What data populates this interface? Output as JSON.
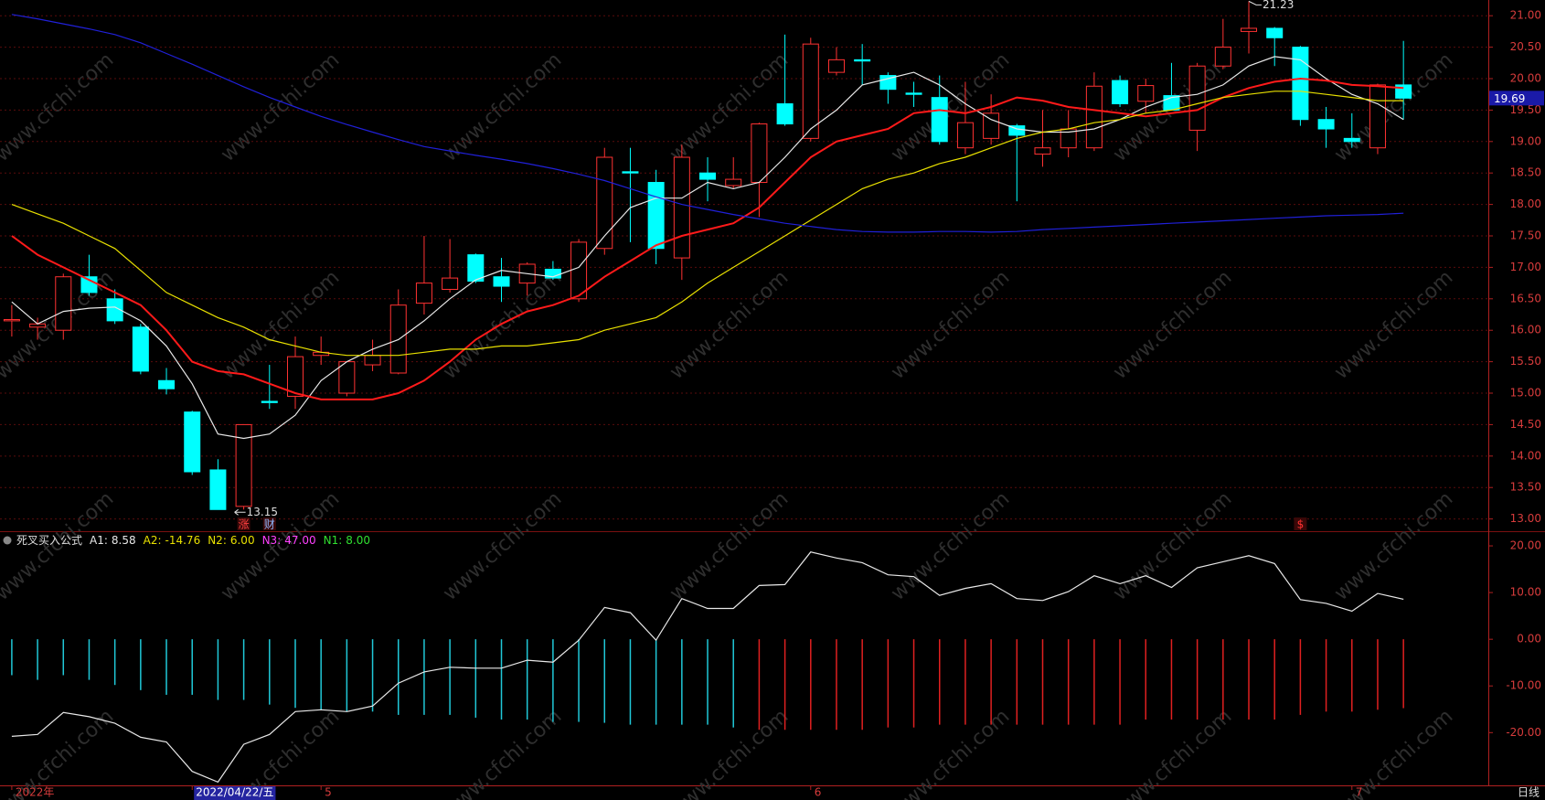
{
  "watermark": "www.cfchi.com",
  "footer": {
    "period": "日线"
  },
  "chart_data": [
    {
      "type": "candlestick",
      "up_color": "#ff3232",
      "down_color": "#00ffff",
      "ylim": [
        12.82,
        21.25
      ],
      "yticks": [
        {
          "value": 13,
          "label": "13.00"
        },
        {
          "value": 13.5,
          "label": "13.50"
        },
        {
          "value": 14,
          "label": "14.00"
        },
        {
          "value": 14.5,
          "label": "14.50"
        },
        {
          "value": 15,
          "label": "15.00"
        },
        {
          "value": 15.5,
          "label": "15.50"
        },
        {
          "value": 16,
          "label": "16.00"
        },
        {
          "value": 16.5,
          "label": "16.50"
        },
        {
          "value": 17,
          "label": "17.00"
        },
        {
          "value": 17.5,
          "label": "17.50"
        },
        {
          "value": 18,
          "label": "18.00"
        },
        {
          "value": 18.5,
          "label": "18.50"
        },
        {
          "value": 19,
          "label": "19.00"
        },
        {
          "value": 19.5,
          "label": "19.50"
        },
        {
          "value": 20,
          "label": "20.00"
        },
        {
          "value": 20.5,
          "label": "20.50"
        },
        {
          "value": 21,
          "label": "21.00"
        }
      ],
      "grid": true,
      "categories": [
        "2022年",
        null,
        null,
        null,
        null,
        null,
        null,
        "2022/04/22/五",
        null,
        null,
        null,
        null,
        "5",
        null,
        null,
        null,
        null,
        null,
        null,
        null,
        null,
        null,
        null,
        null,
        null,
        null,
        null,
        null,
        null,
        null,
        null,
        "6",
        null,
        null,
        null,
        null,
        null,
        null,
        null,
        null,
        null,
        null,
        null,
        null,
        null,
        null,
        null,
        null,
        null,
        null,
        null,
        null,
        "7",
        null,
        null
      ],
      "open": [
        16.15,
        16.05,
        16.0,
        16.85,
        16.5,
        16.05,
        15.2,
        14.7,
        13.78,
        13.2,
        14.87,
        14.95,
        15.6,
        15.0,
        15.45,
        15.32,
        16.43,
        16.65,
        17.2,
        16.85,
        16.75,
        16.97,
        16.5,
        17.3,
        18.52,
        18.35,
        17.15,
        18.5,
        18.3,
        18.35,
        19.6,
        19.05,
        20.1,
        20.3,
        20.05,
        19.77,
        19.7,
        18.9,
        19.05,
        19.25,
        18.8,
        18.9,
        18.9,
        19.97,
        19.64,
        19.73,
        19.18,
        20.2,
        20.75,
        20.8,
        20.5,
        19.35,
        19.05,
        18.9,
        19.9
      ],
      "high": [
        16.4,
        16.2,
        16.9,
        17.2,
        16.65,
        16.1,
        15.4,
        14.72,
        13.95,
        14.5,
        15.45,
        15.9,
        15.9,
        15.5,
        15.85,
        16.65,
        17.5,
        17.45,
        17.22,
        17.15,
        17.08,
        17.1,
        17.45,
        18.9,
        18.9,
        18.55,
        18.95,
        18.75,
        18.75,
        19.3,
        20.7,
        20.65,
        20.5,
        20.55,
        20.1,
        19.95,
        20.05,
        19.95,
        19.75,
        19.28,
        19.5,
        19.5,
        20.1,
        20.05,
        20.0,
        20.25,
        20.25,
        20.95,
        21.23,
        20.82,
        20.52,
        19.55,
        19.45,
        19.92,
        20.6
      ],
      "low": [
        15.9,
        15.85,
        15.85,
        16.55,
        16.1,
        15.3,
        14.98,
        13.7,
        13.17,
        13.15,
        14.75,
        14.75,
        15.45,
        14.95,
        15.35,
        15.3,
        16.25,
        16.6,
        16.75,
        16.45,
        16.55,
        16.8,
        16.45,
        17.2,
        17.4,
        17.05,
        16.8,
        18.05,
        18.25,
        17.8,
        19.25,
        19.0,
        20.05,
        19.9,
        19.6,
        19.55,
        18.95,
        18.8,
        18.95,
        18.05,
        18.6,
        18.75,
        18.85,
        19.55,
        19.45,
        19.5,
        18.85,
        20.15,
        20.4,
        20.2,
        19.25,
        18.9,
        18.9,
        18.8,
        19.35
      ],
      "close": [
        16.17,
        16.1,
        16.85,
        16.6,
        16.15,
        15.35,
        15.07,
        13.75,
        13.15,
        14.5,
        14.85,
        15.58,
        15.65,
        15.5,
        15.6,
        16.4,
        16.75,
        16.83,
        16.78,
        16.7,
        17.05,
        16.83,
        17.4,
        18.75,
        18.5,
        17.3,
        18.75,
        18.4,
        18.4,
        19.28,
        19.28,
        20.55,
        20.3,
        20.28,
        19.83,
        19.75,
        19.0,
        19.3,
        19.45,
        19.1,
        18.9,
        19.2,
        19.88,
        19.6,
        19.89,
        19.5,
        20.2,
        20.5,
        20.8,
        20.65,
        19.35,
        19.2,
        19.0,
        19.9,
        19.69
      ],
      "events": [
        null,
        null,
        null,
        null,
        null,
        null,
        null,
        null,
        null,
        {
          "label": "涨",
          "color": "#ff4040"
        },
        {
          "label": "财",
          "color": "#8fb8ff"
        },
        null,
        null,
        null,
        null,
        null,
        null,
        null,
        null,
        null,
        null,
        null,
        null,
        null,
        null,
        null,
        null,
        null,
        null,
        null,
        null,
        null,
        null,
        null,
        null,
        null,
        null,
        null,
        null,
        null,
        null,
        null,
        null,
        null,
        null,
        null,
        null,
        null,
        null,
        null,
        {
          "label": "$",
          "color": "#ff3030"
        },
        null,
        null,
        null,
        null
      ],
      "series": [
        {
          "color": "#e8e8e8",
          "values": [
            16.45,
            16.1,
            16.3,
            16.35,
            16.37,
            16.15,
            15.75,
            15.15,
            14.35,
            14.28,
            14.35,
            14.65,
            15.2,
            15.5,
            15.7,
            15.85,
            16.15,
            16.5,
            16.8,
            16.95,
            16.9,
            16.85,
            17.0,
            17.5,
            17.95,
            18.1,
            18.1,
            18.35,
            18.25,
            18.35,
            18.75,
            19.2,
            19.5,
            19.9,
            20.0,
            20.1,
            19.9,
            19.6,
            19.35,
            19.2,
            19.15,
            19.15,
            19.2,
            19.35,
            19.55,
            19.7,
            19.75,
            19.9,
            20.2,
            20.35,
            20.3,
            20.0,
            19.75,
            19.6,
            19.35
          ]
        },
        {
          "color": "#ff1a1a",
          "values": [
            17.5,
            17.2,
            17.0,
            16.8,
            16.6,
            16.4,
            16.0,
            15.5,
            15.35,
            15.3,
            15.15,
            15.0,
            14.9,
            14.9,
            14.9,
            15.0,
            15.2,
            15.5,
            15.85,
            16.1,
            16.3,
            16.4,
            16.55,
            16.85,
            17.1,
            17.35,
            17.5,
            17.6,
            17.7,
            17.95,
            18.35,
            18.75,
            19.0,
            19.1,
            19.2,
            19.45,
            19.5,
            19.45,
            19.55,
            19.7,
            19.65,
            19.55,
            19.5,
            19.45,
            19.4,
            19.45,
            19.5,
            19.7,
            19.85,
            19.95,
            20.0,
            19.97,
            19.9,
            19.88,
            19.85
          ]
        },
        {
          "color": "#e8e000",
          "values": [
            18.0,
            17.85,
            17.7,
            17.5,
            17.3,
            16.95,
            16.6,
            16.4,
            16.2,
            16.05,
            15.85,
            15.75,
            15.65,
            15.6,
            15.6,
            15.6,
            15.65,
            15.7,
            15.7,
            15.75,
            15.75,
            15.8,
            15.85,
            16.0,
            16.1,
            16.2,
            16.45,
            16.75,
            17.0,
            17.25,
            17.5,
            17.75,
            18.0,
            18.25,
            18.4,
            18.5,
            18.65,
            18.75,
            18.9,
            19.05,
            19.15,
            19.2,
            19.3,
            19.35,
            19.45,
            19.5,
            19.6,
            19.7,
            19.75,
            19.8,
            19.8,
            19.75,
            19.7,
            19.65,
            19.65
          ]
        },
        {
          "color": "#2020d8",
          "values": [
            21.02,
            20.95,
            20.87,
            20.79,
            20.7,
            20.57,
            20.4,
            20.23,
            20.05,
            19.87,
            19.7,
            19.55,
            19.4,
            19.27,
            19.15,
            19.03,
            18.92,
            18.85,
            18.78,
            18.72,
            18.65,
            18.57,
            18.48,
            18.38,
            18.25,
            18.12,
            18.0,
            17.92,
            17.84,
            17.77,
            17.7,
            17.65,
            17.6,
            17.57,
            17.56,
            17.56,
            17.57,
            17.57,
            17.56,
            17.57,
            17.6,
            17.62,
            17.64,
            17.66,
            17.68,
            17.7,
            17.72,
            17.74,
            17.76,
            17.78,
            17.8,
            17.82,
            17.83,
            17.84,
            17.86
          ]
        }
      ]
    },
    {
      "type": "indicator",
      "name": "死叉买入公式",
      "header": [
        {
          "label": "A1:",
          "text": "8.58",
          "color": "#e8e8e8"
        },
        {
          "label": "A2:",
          "text": "-14.76",
          "color": "#e8e000"
        },
        {
          "label": "N2:",
          "text": "6.00",
          "color": "#e8e000"
        },
        {
          "label": "N3:",
          "text": "47.00",
          "color": "#ff40ff"
        },
        {
          "label": "N1:",
          "text": "8.00",
          "color": "#30e030"
        }
      ],
      "ylim": [
        -31.3,
        22.75
      ],
      "yticks": [
        {
          "value": 20,
          "label": "20.00"
        },
        {
          "value": 10,
          "label": "10.00"
        },
        {
          "value": 0,
          "label": "0.00"
        },
        {
          "value": -10,
          "label": "-10.00"
        },
        {
          "value": -20,
          "label": "-20.00"
        }
      ],
      "series": [
        {
          "name": "A2",
          "kind": "bar",
          "values": [
            -7.7,
            -8.7,
            -7.7,
            -8.7,
            -9.8,
            -10.9,
            -11.9,
            -11.9,
            -13.0,
            -13.0,
            -14.0,
            -14.7,
            -15.1,
            -15.5,
            -15.5,
            -16.2,
            -16.2,
            -16.2,
            -16.8,
            -17.2,
            -17.2,
            -17.7,
            -17.7,
            -17.9,
            -18.3,
            -18.3,
            -18.3,
            -18.3,
            -18.9,
            -19.4,
            -19.4,
            -19.4,
            -19.4,
            -19.4,
            -18.9,
            -18.9,
            -18.3,
            -18.3,
            -18.3,
            -18.3,
            -18.3,
            -18.3,
            -18.3,
            -18.3,
            -17.2,
            -17.2,
            -17.2,
            -17.2,
            -17.2,
            -17.2,
            -16.2,
            -15.5,
            -15.5,
            -15.1,
            -14.76
          ],
          "colors": [
            "#20c8d8",
            "#20c8d8",
            "#20c8d8",
            "#20c8d8",
            "#20c8d8",
            "#20c8d8",
            "#20c8d8",
            "#20c8d8",
            "#20c8d8",
            "#20c8d8",
            "#20c8d8",
            "#20c8d8",
            "#20c8d8",
            "#20c8d8",
            "#20c8d8",
            "#20c8d8",
            "#20c8d8",
            "#20c8d8",
            "#20c8d8",
            "#20c8d8",
            "#20c8d8",
            "#20c8d8",
            "#20c8d8",
            "#20c8d8",
            "#20c8d8",
            "#20c8d8",
            "#20c8d8",
            "#20c8d8",
            "#20c8d8",
            "#e02020",
            "#e02020",
            "#e02020",
            "#e02020",
            "#e02020",
            "#e02020",
            "#e02020",
            "#e02020",
            "#e02020",
            "#e02020",
            "#e02020",
            "#e02020",
            "#e02020",
            "#e02020",
            "#e02020",
            "#e02020",
            "#e02020",
            "#e02020",
            "#e02020",
            "#e02020",
            "#e02020",
            "#e02020",
            "#e02020",
            "#e02020",
            "#e02020",
            "#e02020"
          ]
        },
        {
          "name": "A1",
          "kind": "line",
          "color": "#e8e8e8",
          "values": [
            -20.8,
            -20.4,
            -15.7,
            -16.6,
            -18.0,
            -21.0,
            -22.0,
            -28.3,
            -30.6,
            -22.5,
            -20.4,
            -15.5,
            -15.1,
            -15.5,
            -14.3,
            -9.4,
            -7.0,
            -6.0,
            -6.2,
            -6.2,
            -4.5,
            -4.9,
            -0.2,
            6.8,
            5.7,
            -0.2,
            8.7,
            6.6,
            6.6,
            11.5,
            11.7,
            18.7,
            17.4,
            16.4,
            13.8,
            13.4,
            9.4,
            10.9,
            11.9,
            8.7,
            8.3,
            10.2,
            13.6,
            11.9,
            13.6,
            11.1,
            15.3,
            16.6,
            17.9,
            16.2,
            8.5,
            7.7,
            6.0,
            9.8,
            8.58
          ]
        }
      ]
    }
  ]
}
